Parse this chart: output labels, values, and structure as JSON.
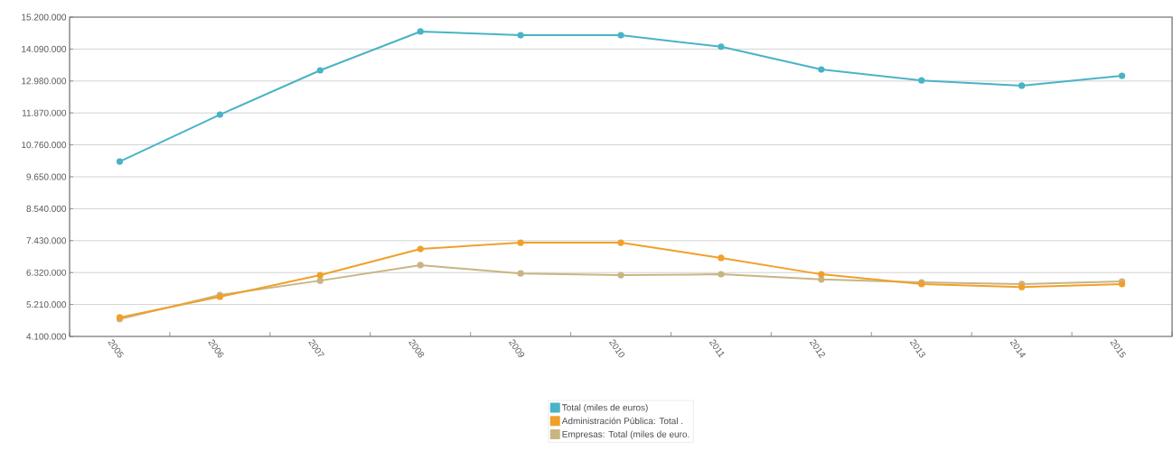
{
  "chart_data": {
    "type": "line",
    "categories": [
      "2005",
      "2006",
      "2007",
      "2008",
      "2009",
      "2010",
      "2011",
      "2012",
      "2013",
      "2014",
      "2015"
    ],
    "series": [
      {
        "name": "Total (miles de euros)",
        "color": "#4ab3c6",
        "values": [
          10180000,
          11810000,
          13350000,
          14700000,
          14570000,
          14570000,
          14170000,
          13380000,
          13000000,
          12820000,
          13160000
        ]
      },
      {
        "name": "Administración Pública: Total .",
        "color": "#f0a02a",
        "values": [
          4760000,
          5480000,
          6230000,
          7140000,
          7360000,
          7360000,
          6830000,
          6260000,
          5920000,
          5820000,
          5920000
        ]
      },
      {
        "name": "Empresas: Total (miles de euro.",
        "color": "#c8b582",
        "values": [
          4700000,
          5540000,
          6040000,
          6580000,
          6290000,
          6230000,
          6260000,
          6080000,
          5980000,
          5920000,
          6010000
        ]
      }
    ],
    "ylim": [
      4100000,
      15200000
    ],
    "yticks": [
      {
        "value": 4100000,
        "label": "4.100.000"
      },
      {
        "value": 5210000,
        "label": "5.210.000"
      },
      {
        "value": 6320000,
        "label": "6.320.000"
      },
      {
        "value": 7430000,
        "label": "7.430.000"
      },
      {
        "value": 8540000,
        "label": "8.540.000"
      },
      {
        "value": 9650000,
        "label": "9.650.000"
      },
      {
        "value": 10760000,
        "label": "10.760.000"
      },
      {
        "value": 11870000,
        "label": "11.870.000"
      },
      {
        "value": 12980000,
        "label": "12.980.000"
      },
      {
        "value": 14090000,
        "label": "14.090.000"
      },
      {
        "value": 15200000,
        "label": "15.200.000"
      }
    ],
    "grid": "y",
    "legend": "bottom",
    "marker": "circle",
    "line_style": "solid"
  }
}
